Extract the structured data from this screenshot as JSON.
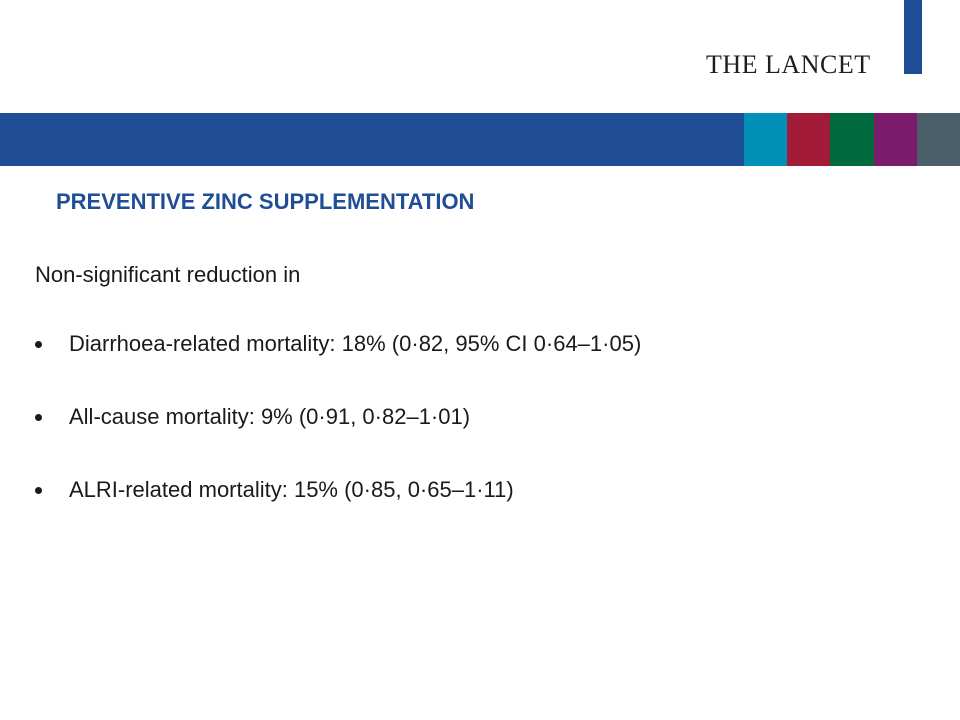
{
  "header": {
    "logo_text": "THE LANCET",
    "accent_colors": [
      "#1f4e96",
      "#0090b8",
      "#a31c37",
      "#006a3e",
      "#7b1b6b",
      "#4a5f69"
    ]
  },
  "slide": {
    "title": "PREVENTIVE ZINC SUPPLEMENTATION",
    "intro": "Non-significant reduction in",
    "bullets": [
      {
        "text": "Diarrhoea-related mortality: 18% (0·82, 95% CI 0·64–1·05)"
      },
      {
        "text": "All-cause mortality: 9% (0·91, 0·82–1·01)"
      },
      {
        "text": "ALRI-related mortality: 15% (0·85, 0·65–1·11)"
      }
    ]
  }
}
